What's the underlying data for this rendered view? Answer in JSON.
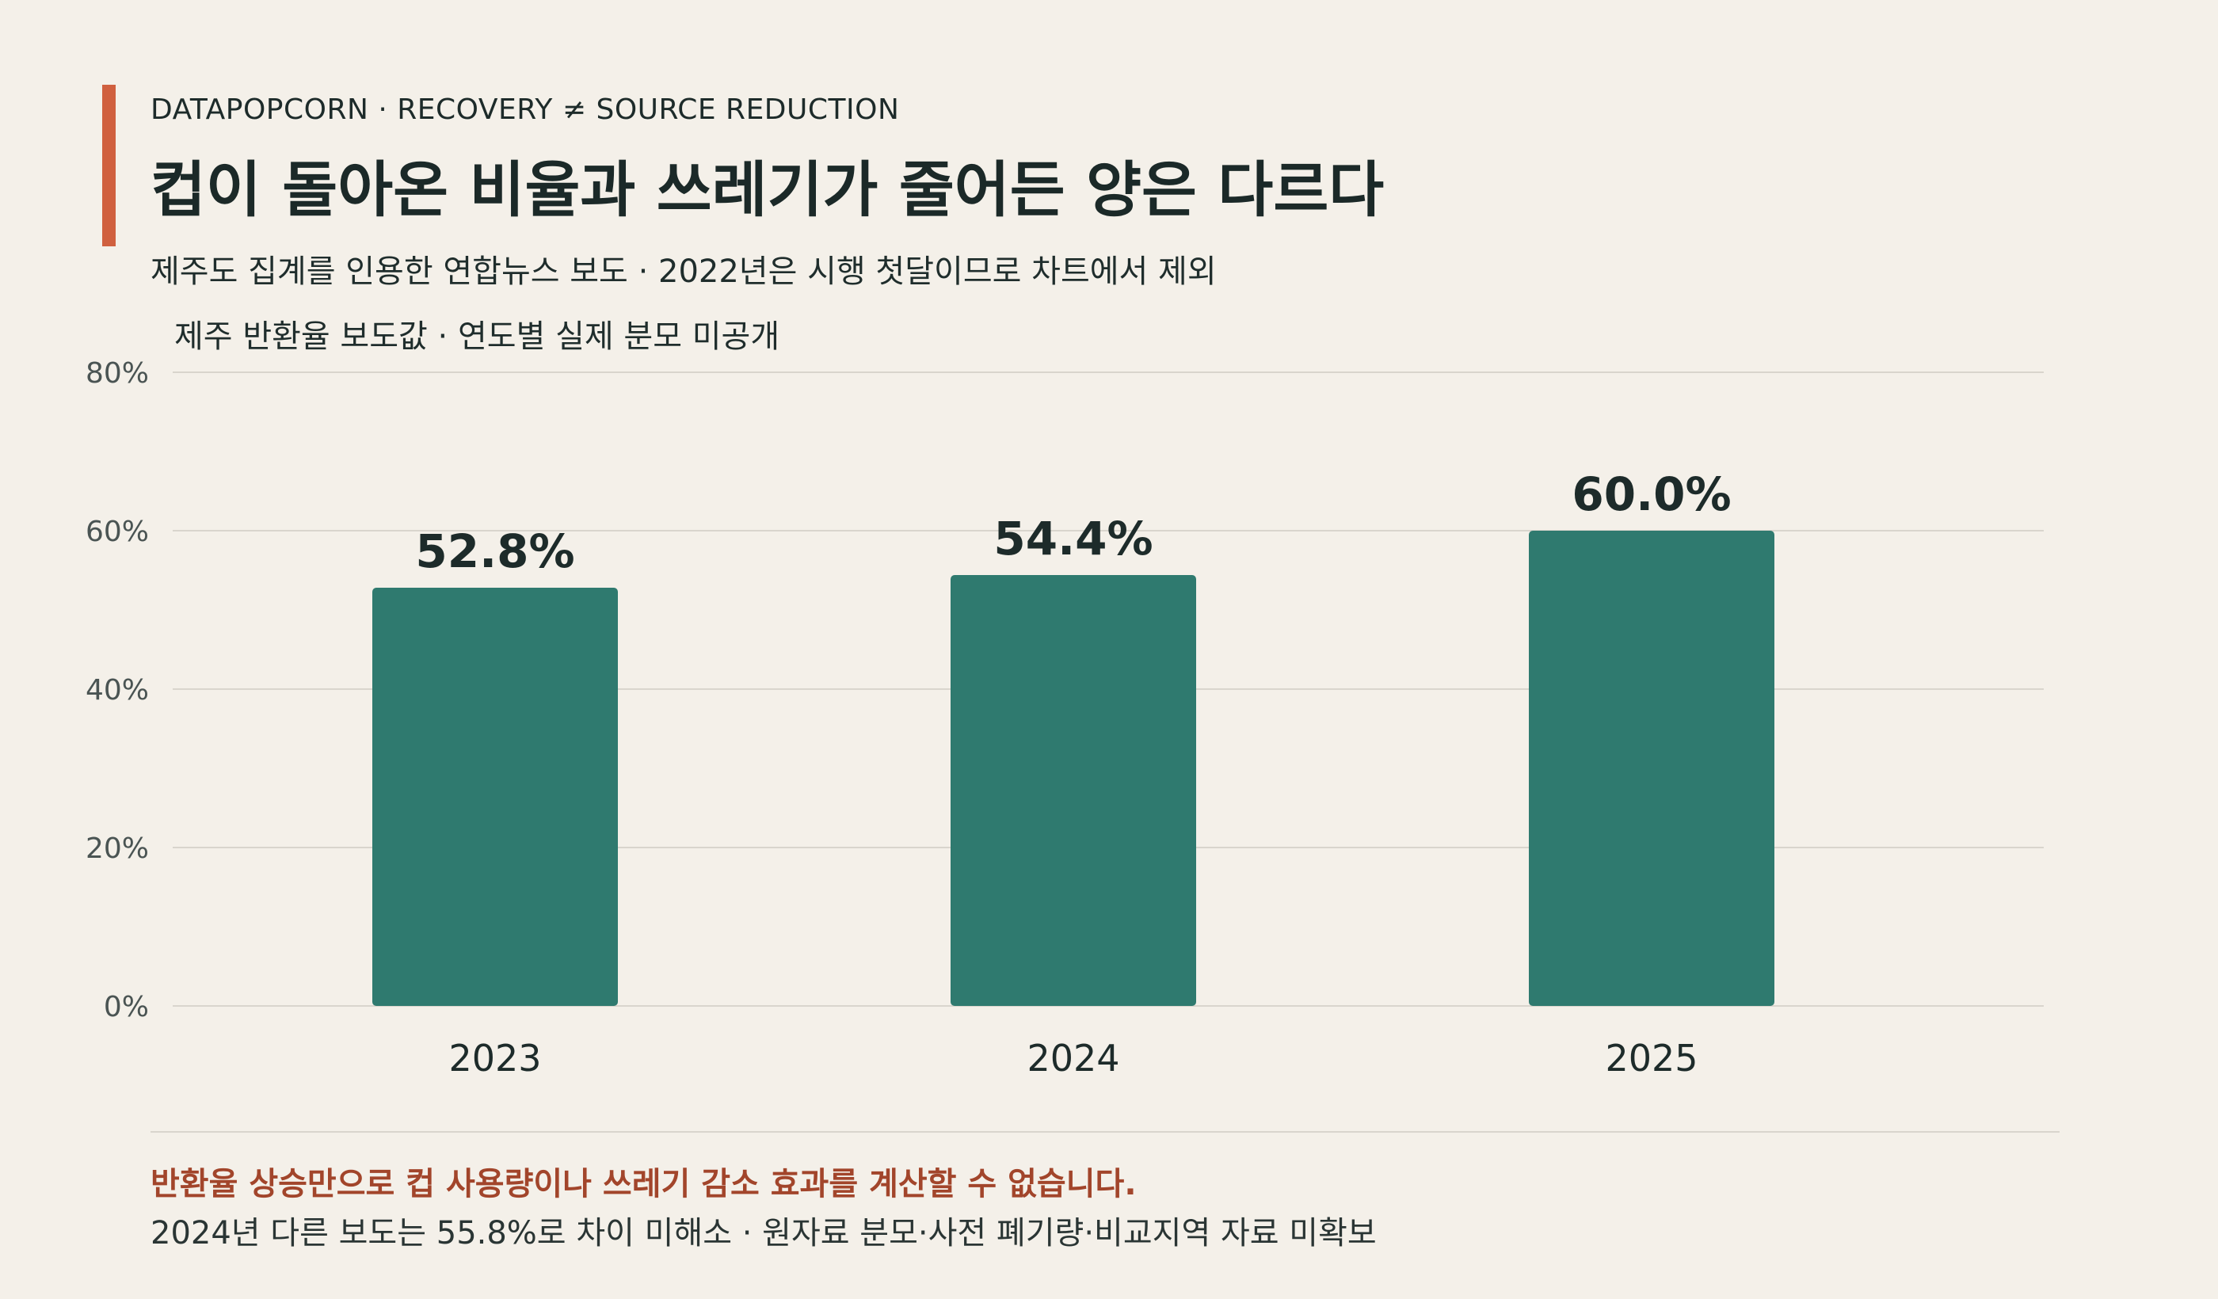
{
  "header": {
    "eyebrow": "DATAPOPCORN · RECOVERY ≠ SOURCE REDUCTION",
    "title": "컵이 돌아온 비율과 쓰레기가 줄어든 양은 다르다",
    "subtitle": "제주도 집계를 인용한 연합뉴스 보도 · 2022년은 시행 첫달이므로 차트에서 제외"
  },
  "chart_label": "제주 반환율 보도값 · 연도별 실제 분모 미공개",
  "colors": {
    "accent": "#d0603f",
    "bar": "#2f7a6f",
    "grid": "#d9d5cd",
    "note_strong": "#a2452b"
  },
  "chart_data": {
    "type": "bar",
    "categories": [
      "2023",
      "2024",
      "2025"
    ],
    "values": [
      52.8,
      54.4,
      60.0
    ],
    "value_labels": [
      "52.8%",
      "54.4%",
      "60.0%"
    ],
    "ylim": [
      0,
      80
    ],
    "yticks": [
      0,
      20,
      40,
      60,
      80
    ],
    "ytick_labels": [
      "0%",
      "20%",
      "40%",
      "60%",
      "80%"
    ],
    "grid": true
  },
  "footer": {
    "note_strong": "반환율 상승만으로 컵 사용량이나 쓰레기 감소 효과를 계산할 수 없습니다.",
    "note": "2024년 다른 보도는 55.8%로 차이 미해소 · 원자료 분모·사전 폐기량·비교지역 자료 미확보"
  }
}
